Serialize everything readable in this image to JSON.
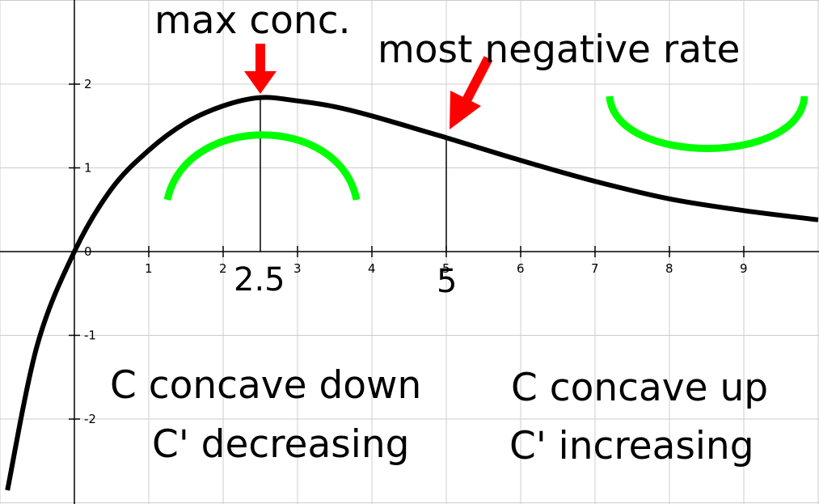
{
  "chart_data": {
    "type": "line",
    "title": "",
    "xlabel": "",
    "ylabel": "",
    "xlim": [
      -1,
      10
    ],
    "ylim": [
      -3,
      3
    ],
    "grid": true,
    "x_ticks": [
      1,
      2,
      3,
      4,
      5,
      6,
      7,
      8,
      9
    ],
    "x_tick_labels": [
      "1",
      "2",
      "3",
      "4",
      "5",
      "6",
      "7",
      "8",
      "9"
    ],
    "y_ticks": [
      2,
      1,
      0,
      -1,
      -2
    ],
    "y_tick_labels": [
      "2",
      "1",
      "0",
      "-1",
      "-2"
    ],
    "series": [
      {
        "x": [
          -0.9,
          -0.5,
          0,
          0.5,
          1,
          1.5,
          2,
          2.5,
          3,
          3.5,
          4,
          5,
          6,
          7,
          8,
          9,
          10
        ],
        "y": [
          -2.85,
          -1.12,
          0,
          0.75,
          1.21,
          1.54,
          1.74,
          1.84,
          1.8,
          1.73,
          1.62,
          1.36,
          1.09,
          0.84,
          0.63,
          0.49,
          0.38
        ]
      }
    ],
    "annotations": {
      "max_label": "max conc.",
      "rate_label": "most negative rate",
      "max_x_label": "2.5",
      "inflection_x_label": "5",
      "max_x": 2.5,
      "inflection_x": 5,
      "left_line1": "C concave down",
      "left_line2": "C' decreasing",
      "right_line1": "C concave up",
      "right_line2": "C' increasing"
    },
    "colors": {
      "curve": "#000000",
      "arrow": "#ff0000",
      "concavity": "#00ff00",
      "grid": "#cccccc"
    }
  }
}
